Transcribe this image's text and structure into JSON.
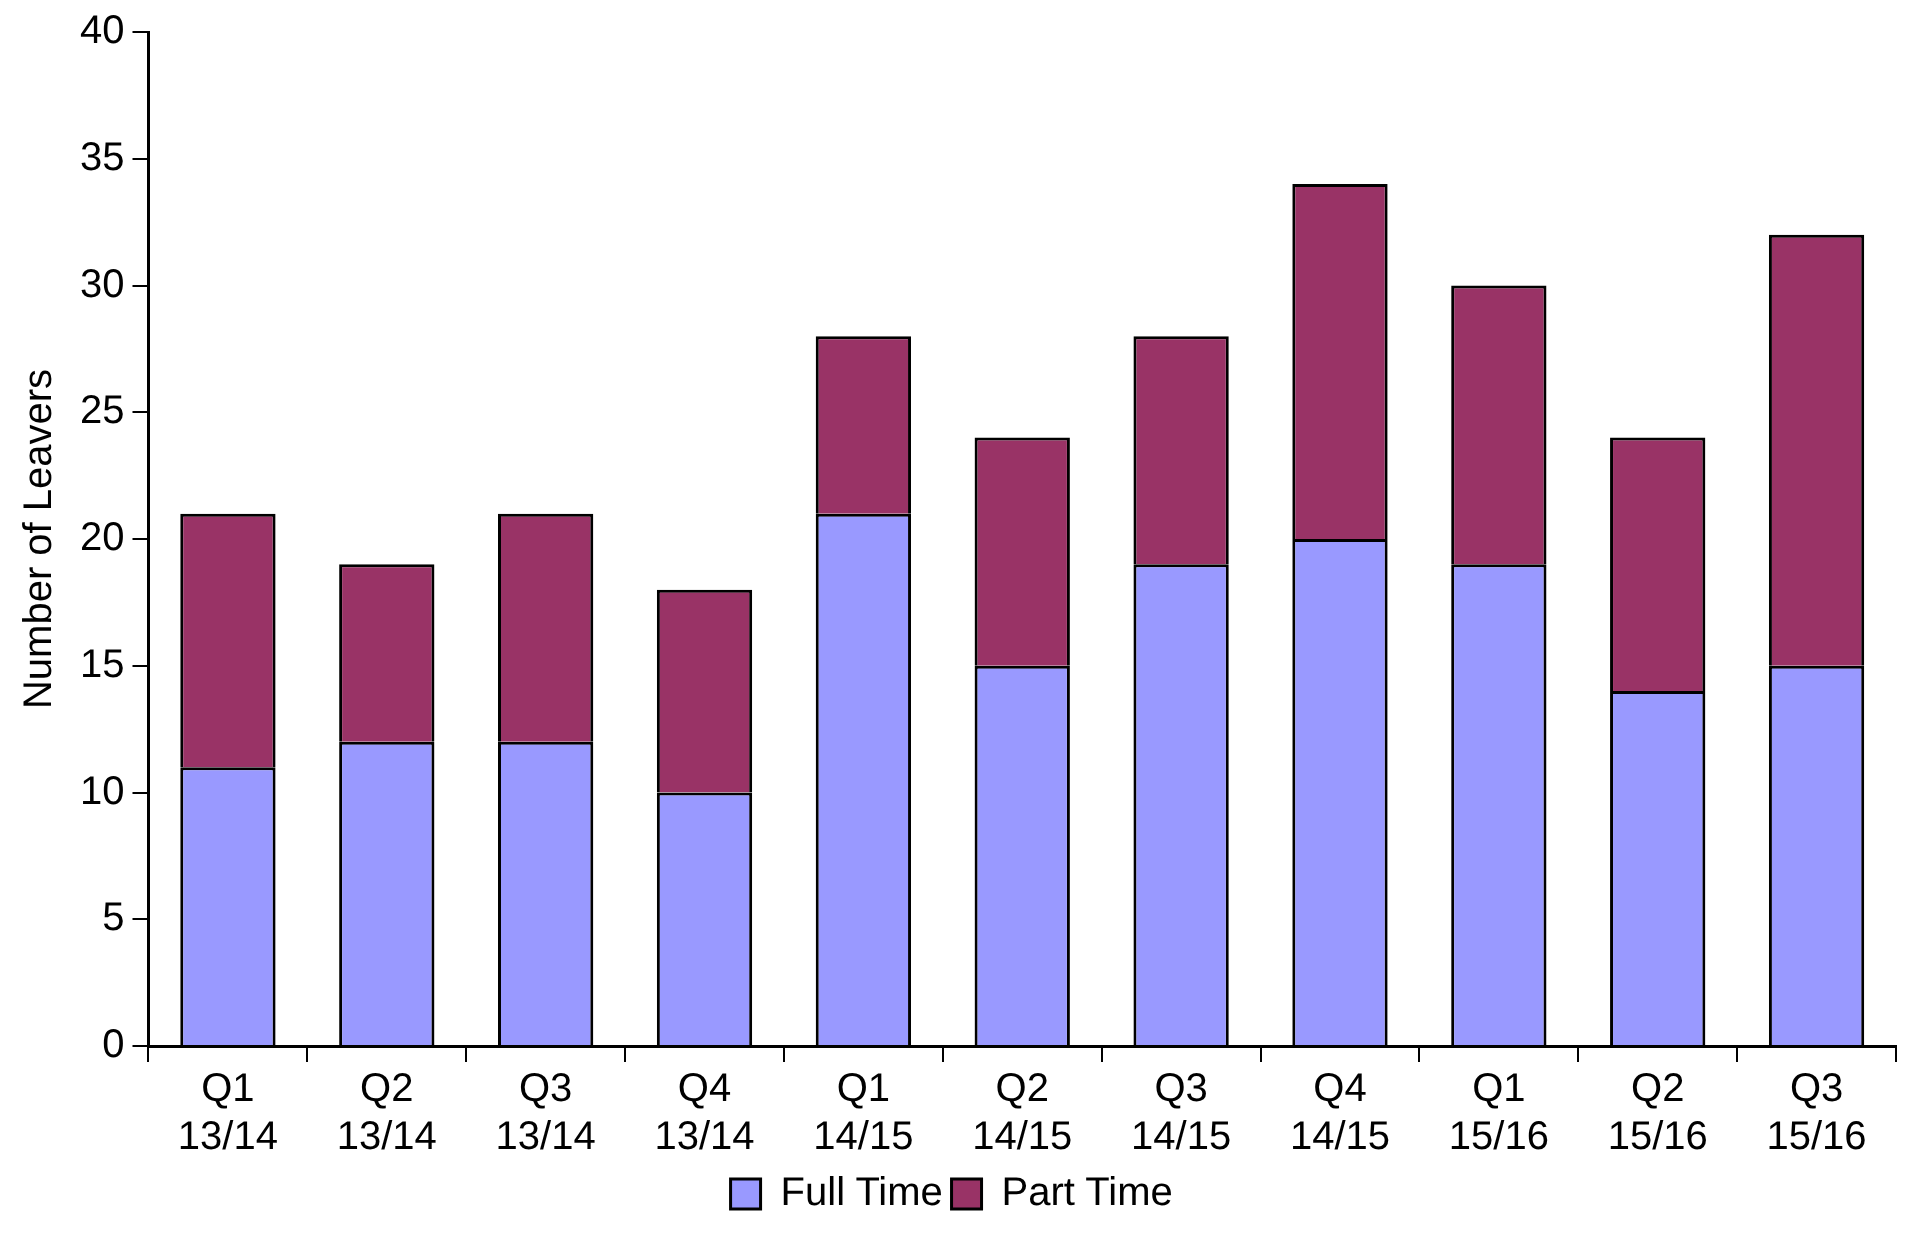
{
  "chart_data": {
    "type": "bar",
    "stacked": true,
    "ylabel": "Number of Leavers",
    "categories": [
      "Q1 13/14",
      "Q2 13/14",
      "Q3 13/14",
      "Q4 13/14",
      "Q1 14/15",
      "Q2 14/15",
      "Q3 14/15",
      "Q4 14/15",
      "Q1 15/16",
      "Q2 15/16",
      "Q3 15/16"
    ],
    "series": [
      {
        "name": "Full Time",
        "color": "#9999ff",
        "values": [
          11,
          12,
          12,
          10,
          21,
          15,
          19,
          20,
          19,
          14,
          15
        ]
      },
      {
        "name": "Part Time",
        "color": "#993366",
        "values": [
          10,
          7,
          9,
          8,
          7,
          9,
          9,
          14,
          11,
          10,
          17
        ]
      }
    ],
    "ylim": [
      0,
      40
    ],
    "yticks": [
      0,
      5,
      10,
      15,
      20,
      25,
      30,
      35,
      40
    ],
    "grid": false,
    "legend": "bottom"
  }
}
